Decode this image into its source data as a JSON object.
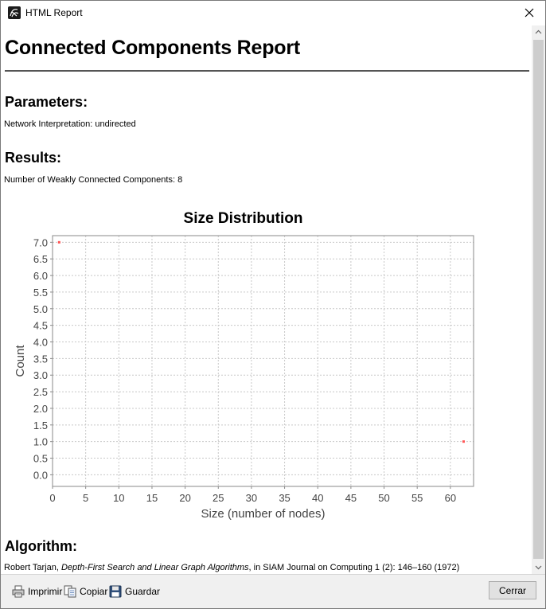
{
  "window": {
    "title": "HTML Report"
  },
  "report": {
    "title": "Connected Components Report",
    "parameters_heading": "Parameters:",
    "parameters_text": "Network Interpretation: undirected",
    "results_heading": "Results:",
    "results_text": "Number of Weakly Connected Components: 8",
    "algorithm_heading": "Algorithm:",
    "algorithm_author": "Robert Tarjan, ",
    "algorithm_paper": "Depth-First Search and Linear Graph Algorithms",
    "algorithm_rest": ", in SIAM Journal on Computing 1 (2): 146–160 (1972)"
  },
  "chart_data": {
    "type": "scatter",
    "title": "Size Distribution",
    "xlabel": "Size (number of nodes)",
    "ylabel": "Count",
    "xlim": [
      0,
      63.5
    ],
    "ylim": [
      -0.35,
      7.2
    ],
    "xticks": [
      "0",
      "5",
      "10",
      "15",
      "20",
      "25",
      "30",
      "35",
      "40",
      "45",
      "50",
      "55",
      "60"
    ],
    "yticks": [
      "0.0",
      "0.5",
      "1.0",
      "1.5",
      "2.0",
      "2.5",
      "3.0",
      "3.5",
      "4.0",
      "4.5",
      "5.0",
      "5.5",
      "6.0",
      "6.5",
      "7.0"
    ],
    "grid": true,
    "series": [
      {
        "points": [
          {
            "x": 1,
            "y": 7
          },
          {
            "x": 62,
            "y": 1
          }
        ],
        "color": "#ff5555"
      }
    ]
  },
  "buttons": {
    "print": "Imprimir",
    "copy": "Copiar",
    "save": "Guardar",
    "close": "Cerrar"
  }
}
